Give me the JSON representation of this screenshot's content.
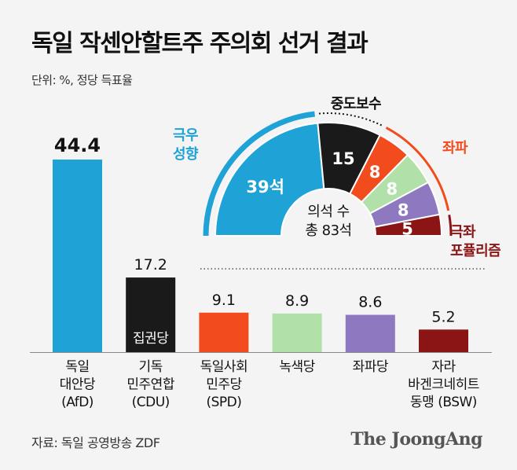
{
  "title": "독일 작센안할트주 주의회 선거 결과",
  "unit": "단위: %, 정당 득표율",
  "source": "자료: 독일 공영방송 ZDF",
  "logo": "The JoongAng",
  "chart_data": [
    {
      "type": "bar",
      "categories": [
        [
          "독일",
          "대안당",
          "(AfD)"
        ],
        [
          "기독",
          "민주연합",
          "(CDU)"
        ],
        [
          "독일사회",
          "민주당",
          "(SPD)"
        ],
        [
          "녹색당"
        ],
        [
          "좌파당"
        ],
        [
          "자라",
          "바겐크네히트",
          "동맹 (BSW)"
        ]
      ],
      "values": [
        44.4,
        17.2,
        9.1,
        8.9,
        8.6,
        5.2
      ],
      "value_labels": [
        "44.4",
        "17.2",
        "9.1",
        "8.9",
        "8.6",
        "5.2"
      ],
      "colors": [
        "#1fa3d6",
        "#1a1a1a",
        "#f24b1e",
        "#b1e0a8",
        "#8e78bf",
        "#8b1414"
      ],
      "bar_annotation": {
        "index": 1,
        "text": "집권당"
      },
      "ylim": [
        0,
        44.4
      ]
    },
    {
      "type": "pie",
      "variant": "semicircle",
      "labels": [
        "극우 성향",
        "중도보수",
        "좌파",
        "좌파",
        "좌파",
        "극좌 포퓰리즘"
      ],
      "values": [
        39,
        15,
        8,
        8,
        8,
        5
      ],
      "slice_labels": [
        "39석",
        "15",
        "8",
        "8",
        "8",
        "5"
      ],
      "colors": [
        "#1fa3d6",
        "#1a1a1a",
        "#f24b1e",
        "#b1e0a8",
        "#8e78bf",
        "#8b1414"
      ],
      "center_text": [
        "의석 수",
        "총 83석"
      ],
      "group_labels": [
        {
          "lines": [
            "극우",
            "성향"
          ],
          "color": "#1fa3d6"
        },
        {
          "lines": [
            "중도보수"
          ],
          "color": "#111111"
        },
        {
          "lines": [
            "좌파"
          ],
          "color": "#f24b1e"
        },
        {
          "lines": [
            "극좌",
            "포퓰리즘"
          ],
          "color": "#8b1414"
        }
      ]
    }
  ]
}
